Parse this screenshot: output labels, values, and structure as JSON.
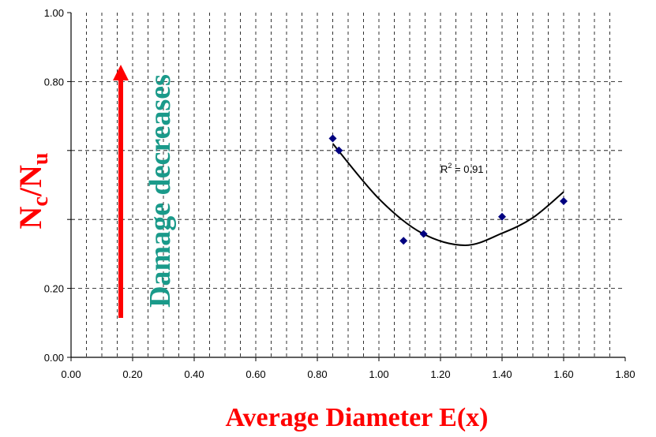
{
  "chart_data": {
    "type": "scatter",
    "xlabel": "Average Diameter E(x)",
    "ylabel_main": "N",
    "ylabel_sub1": "c",
    "ylabel_slash": "/N",
    "ylabel_sub2": "u",
    "xlim": [
      0,
      1.8
    ],
    "ylim": [
      0,
      1.0
    ],
    "x_ticks": [
      "0.00",
      "0.20",
      "0.40",
      "0.60",
      "0.80",
      "1.00",
      "1.20",
      "1.40",
      "1.60",
      "1.80"
    ],
    "y_ticks": [
      "0.00",
      "0.20",
      "",
      "",
      "0.80",
      "1.00"
    ],
    "grid": true,
    "points": [
      {
        "x": 0.85,
        "y": 0.635
      },
      {
        "x": 0.87,
        "y": 0.6
      },
      {
        "x": 1.08,
        "y": 0.338
      },
      {
        "x": 1.145,
        "y": 0.358
      },
      {
        "x": 1.4,
        "y": 0.408
      },
      {
        "x": 1.6,
        "y": 0.453
      }
    ],
    "trendline": {
      "type": "polynomial-2",
      "x_range": [
        0.85,
        1.6
      ],
      "points": [
        [
          0.85,
          0.62
        ],
        [
          1.0,
          0.46
        ],
        [
          1.14,
          0.36
        ],
        [
          1.28,
          0.325
        ],
        [
          1.4,
          0.36
        ],
        [
          1.5,
          0.405
        ],
        [
          1.6,
          0.48
        ]
      ],
      "label": "R² = 0.91",
      "label_x": 1.2,
      "label_y": 0.535
    },
    "annotation": {
      "text": "Damage decreases",
      "arrow_direction": "up"
    },
    "colors": {
      "points": "#000080",
      "trendline": "#000000",
      "labels": "#ff0000",
      "arrow": "#ff0000",
      "annotation": "#1a9a8a"
    }
  }
}
